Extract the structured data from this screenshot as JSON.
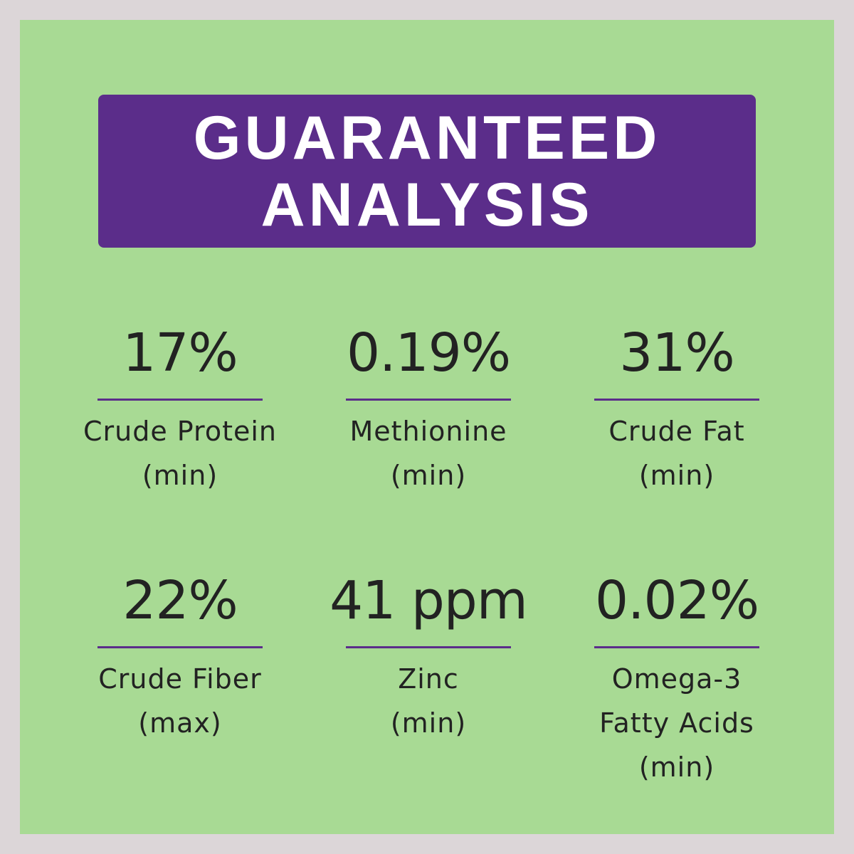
{
  "header": {
    "title": [
      "GUARANTEED",
      "ANALYSIS"
    ]
  },
  "items": [
    {
      "value": "17%",
      "label": [
        "Crude Protein",
        "(min)"
      ]
    },
    {
      "value": "0.19%",
      "label": [
        "Methionine",
        "(min)"
      ]
    },
    {
      "value": "31%",
      "label": [
        "Crude Fat",
        "(min)"
      ]
    },
    {
      "value": "22%",
      "label": [
        "Crude Fiber",
        "(max)"
      ]
    },
    {
      "value": "41 ppm",
      "label": [
        "Zinc",
        "(min)"
      ]
    },
    {
      "value": "0.02%",
      "label": [
        "Omega-3",
        "Fatty Acids",
        "(min)"
      ]
    }
  ]
}
